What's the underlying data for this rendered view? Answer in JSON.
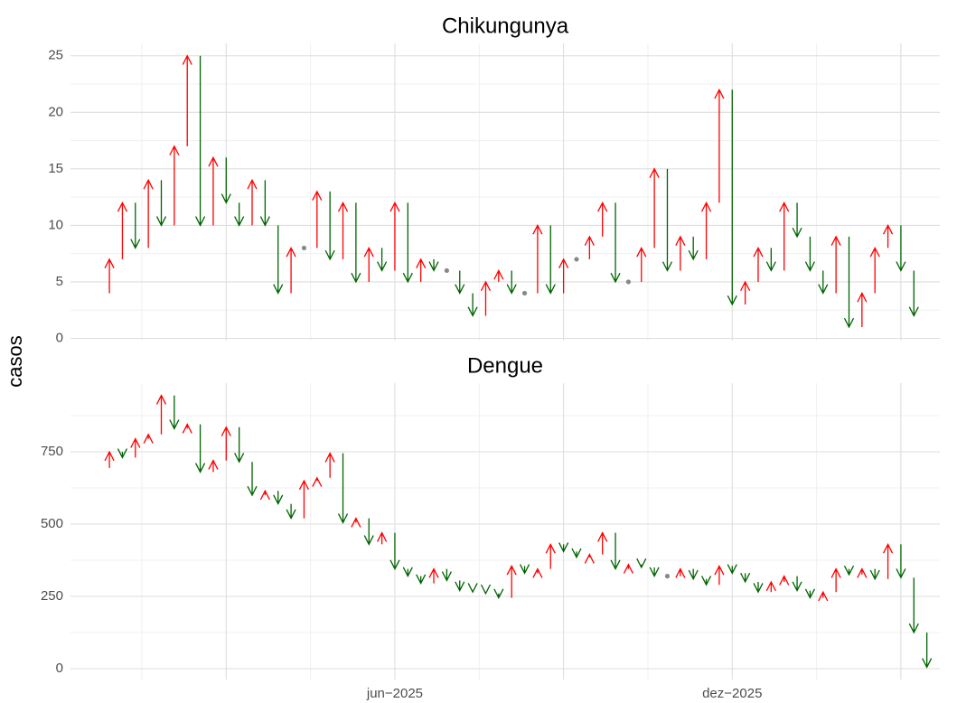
{
  "y_label": "casos",
  "colors": {
    "up": "#ff0000",
    "down": "#006400",
    "same": "#888888"
  },
  "chart_data": [
    {
      "type": "arrow",
      "title": "Chikungunya",
      "x": [
        0,
        1,
        2,
        3,
        4,
        5,
        6,
        7,
        8,
        9,
        10,
        11,
        12,
        13,
        14,
        15,
        16,
        17,
        18,
        19,
        20,
        21,
        22,
        23,
        24,
        25,
        26,
        27,
        28,
        29,
        30,
        31,
        32,
        33,
        34,
        35,
        36,
        37,
        38,
        39,
        40,
        41,
        42,
        43,
        44,
        45,
        46,
        47,
        48,
        49,
        50,
        51,
        52,
        53,
        54,
        55,
        56,
        57,
        58,
        59,
        60,
        61,
        62,
        63,
        64
      ],
      "values": [
        4,
        7,
        12,
        8,
        14,
        10,
        17,
        25,
        10,
        16,
        12,
        10,
        14,
        10,
        4,
        8,
        8,
        13,
        7,
        12,
        5,
        8,
        6,
        12,
        5,
        7,
        6,
        6,
        4,
        2,
        5,
        6,
        4,
        4,
        10,
        4,
        7,
        7,
        9,
        12,
        5,
        5,
        8,
        15,
        6,
        9,
        7,
        12,
        22,
        3,
        5,
        8,
        6,
        12,
        9,
        6,
        4,
        9,
        1,
        4,
        8,
        10,
        6,
        2,
        null
      ],
      "xlim": [
        -2,
        65
      ],
      "xticks": [
        {
          "value": 10,
          "label": null
        },
        {
          "value": 23,
          "label": null
        },
        {
          "value": 36,
          "label": null
        },
        {
          "value": 49,
          "label": null
        },
        {
          "value": 62,
          "label": null
        }
      ],
      "ylim": [
        -0.2,
        26.1
      ],
      "yticks": [
        0,
        5,
        10,
        15,
        20,
        25
      ],
      "grid": true
    },
    {
      "type": "arrow",
      "title": "Dengue",
      "x": [
        0,
        1,
        2,
        3,
        4,
        5,
        6,
        7,
        8,
        9,
        10,
        11,
        12,
        13,
        14,
        15,
        16,
        17,
        18,
        19,
        20,
        21,
        22,
        23,
        24,
        25,
        26,
        27,
        28,
        29,
        30,
        31,
        32,
        33,
        34,
        35,
        36,
        37,
        38,
        39,
        40,
        41,
        42,
        43,
        44,
        45,
        46,
        47,
        48,
        49,
        50,
        51,
        52,
        53,
        54,
        55,
        56,
        57,
        58,
        59,
        60,
        61,
        62,
        63,
        64
      ],
      "values": [
        694,
        750,
        730,
        795,
        810,
        945,
        830,
        845,
        680,
        720,
        835,
        715,
        600,
        615,
        570,
        520,
        650,
        660,
        745,
        505,
        520,
        430,
        470,
        345,
        320,
        295,
        345,
        305,
        270,
        265,
        260,
        245,
        355,
        330,
        345,
        430,
        405,
        385,
        395,
        470,
        345,
        360,
        350,
        320,
        320,
        345,
        310,
        290,
        355,
        330,
        300,
        265,
        300,
        320,
        270,
        245,
        265,
        345,
        325,
        345,
        310,
        430,
        315,
        125,
        5
      ],
      "xlim": [
        -2,
        65
      ],
      "xticks": [
        {
          "value": 10,
          "label": null
        },
        {
          "value": 23,
          "label": "jun−2025"
        },
        {
          "value": 36,
          "label": null
        },
        {
          "value": 49,
          "label": "dez−2025"
        },
        {
          "value": 62,
          "label": null
        }
      ],
      "ylim": [
        -37.5,
        987.5
      ],
      "yticks": [
        0,
        250,
        500,
        750
      ],
      "grid": true
    }
  ]
}
